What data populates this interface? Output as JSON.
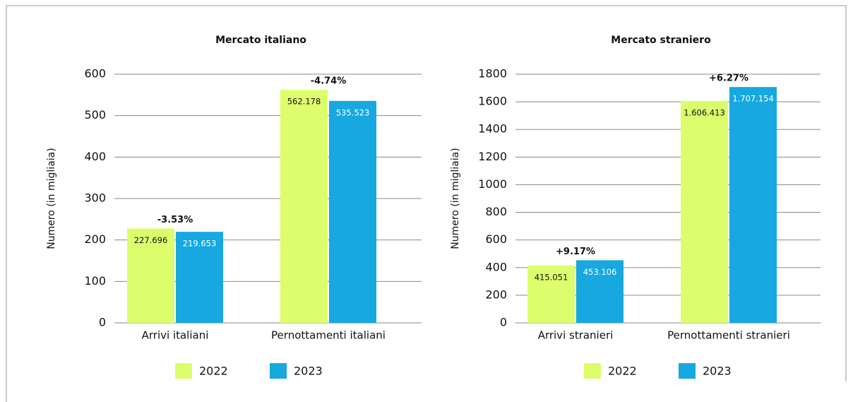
{
  "chart_data": [
    {
      "type": "bar",
      "title": "Mercato italiano",
      "y_label": "Numero (in migliaia)",
      "categories": [
        "Arrivi italiani",
        "Pernottamenti italiani"
      ],
      "series": [
        {
          "name": "2022",
          "color": "#dcfd6c",
          "values": [
            227.696,
            562.178
          ],
          "value_labels": [
            "227.696",
            "562.178"
          ]
        },
        {
          "name": "2023",
          "color": "#17a8e0",
          "values": [
            219.653,
            535.523
          ],
          "value_labels": [
            "219.653",
            "535.523"
          ]
        }
      ],
      "annotations": [
        "-3.53%",
        "-4.74%"
      ],
      "ylim": [
        0,
        600
      ],
      "yticks": [
        0,
        100,
        200,
        300,
        400,
        500,
        600
      ],
      "grid": true
    },
    {
      "type": "bar",
      "title": "Mercato straniero",
      "y_label": "Numero (in migliaia)",
      "categories": [
        "Arrivi stranieri",
        "Pernottamenti stranieri"
      ],
      "series": [
        {
          "name": "2022",
          "color": "#dcfd6c",
          "values": [
            415.051,
            1606.413
          ],
          "value_labels": [
            "415.051",
            "1.606.413"
          ]
        },
        {
          "name": "2023",
          "color": "#17a8e0",
          "values": [
            453.106,
            1707.154
          ],
          "value_labels": [
            "453.106",
            "1.707.154"
          ]
        }
      ],
      "annotations": [
        "+9.17%",
        "+6.27%"
      ],
      "ylim": [
        0,
        1800
      ],
      "yticks": [
        0,
        200,
        400,
        600,
        800,
        1000,
        1200,
        1400,
        1600,
        1800
      ],
      "grid": true
    }
  ]
}
